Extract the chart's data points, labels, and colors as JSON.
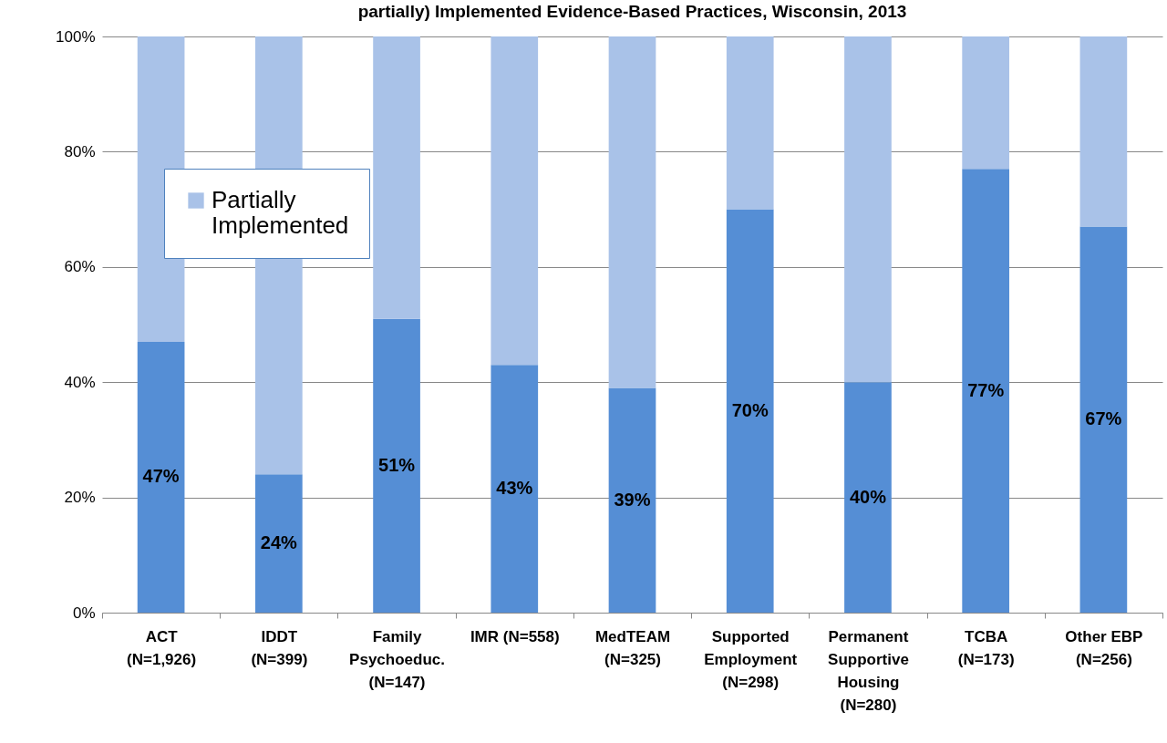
{
  "chart_data": {
    "type": "bar",
    "title": "partially) Implemented Evidence-Based Practices, Wisconsin, 2013",
    "categories": [
      "ACT\n(N=1,926)",
      "IDDT\n(N=399)",
      "Family\nPsychoeduc.\n(N=147)",
      "IMR (N=558)",
      "MedTEAM\n(N=325)",
      "Supported\nEmployment\n(N=298)",
      "Permanent\nSupportive\nHousing\n(N=280)",
      "TCBA\n(N=173)",
      "Other EBP\n(N=256)"
    ],
    "stacked": true,
    "series": [
      {
        "color": "#558ed5",
        "values": [
          47,
          24,
          51,
          43,
          39,
          70,
          40,
          77,
          67
        ],
        "value_labels": [
          "47%",
          "24%",
          "51%",
          "43%",
          "39%",
          "70%",
          "40%",
          "77%",
          "67%"
        ]
      },
      {
        "name": "Partially Implemented",
        "color": "#a9c2e8",
        "values": [
          53,
          76,
          49,
          57,
          61,
          30,
          60,
          23,
          33
        ]
      }
    ],
    "ylim": [
      0,
      100
    ],
    "yticks": [
      {
        "value": 0,
        "label": "0%"
      },
      {
        "value": 20,
        "label": "20%"
      },
      {
        "value": 40,
        "label": "40%"
      },
      {
        "value": 60,
        "label": "60%"
      },
      {
        "value": 80,
        "label": "80%"
      },
      {
        "value": 100,
        "label": "100%"
      }
    ],
    "grid": "y",
    "legend": "top left"
  }
}
